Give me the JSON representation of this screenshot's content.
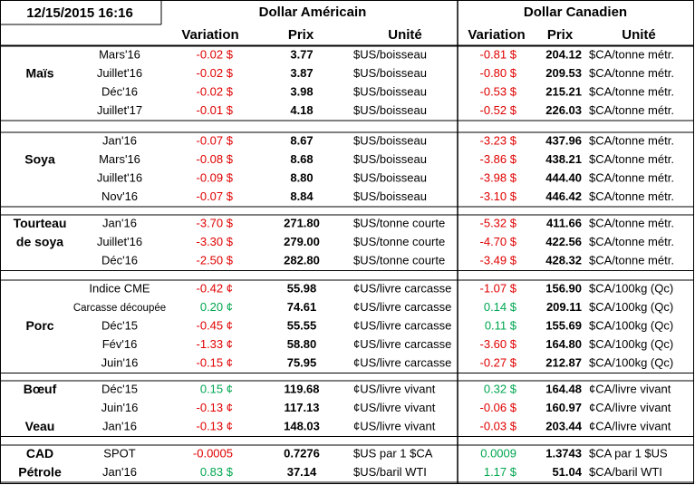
{
  "header": {
    "timestamp": "12/15/2015 16:16",
    "us_title": "Dollar Américain",
    "ca_title": "Dollar Canadien",
    "columns": {
      "us_variation": "Variation",
      "us_price": "Prix",
      "us_unit": "Unité",
      "ca_variation": "Variation",
      "ca_price": "Prix",
      "ca_unit": "Unité"
    }
  },
  "sections": [
    {
      "labels": [
        {
          "text": "Maïs",
          "row": 1
        }
      ],
      "rows": [
        {
          "contract": "Mars'16",
          "us_variation": "-0.02 $",
          "us_price": "3.77",
          "us_unit": "$US/boisseau",
          "ca_variation": "-0.81 $",
          "ca_price": "204.12",
          "ca_unit": "$CA/tonne métr."
        },
        {
          "contract": "Juillet'16",
          "us_variation": "-0.02 $",
          "us_price": "3.87",
          "us_unit": "$US/boisseau",
          "ca_variation": "-0.80 $",
          "ca_price": "209.53",
          "ca_unit": "$CA/tonne métr."
        },
        {
          "contract": "Déc'16",
          "us_variation": "-0.02 $",
          "us_price": "3.98",
          "us_unit": "$US/boisseau",
          "ca_variation": "-0.53 $",
          "ca_price": "215.21",
          "ca_unit": "$CA/tonne métr."
        },
        {
          "contract": "Juillet'17",
          "us_variation": "-0.01 $",
          "us_price": "4.18",
          "us_unit": "$US/boisseau",
          "ca_variation": "-0.52 $",
          "ca_price": "226.03",
          "ca_unit": "$CA/tonne métr."
        }
      ]
    },
    {
      "labels": [
        {
          "text": "Soya",
          "row": 1
        }
      ],
      "rows": [
        {
          "contract": "Jan'16",
          "us_variation": "-0.07 $",
          "us_price": "8.67",
          "us_unit": "$US/boisseau",
          "ca_variation": "-3.23 $",
          "ca_price": "437.96",
          "ca_unit": "$CA/tonne métr."
        },
        {
          "contract": "Mars'16",
          "us_variation": "-0.08 $",
          "us_price": "8.68",
          "us_unit": "$US/boisseau",
          "ca_variation": "-3.86 $",
          "ca_price": "438.21",
          "ca_unit": "$CA/tonne métr."
        },
        {
          "contract": "Juillet'16",
          "us_variation": "-0.09 $",
          "us_price": "8.80",
          "us_unit": "$US/boisseau",
          "ca_variation": "-3.98 $",
          "ca_price": "444.40",
          "ca_unit": "$CA/tonne métr."
        },
        {
          "contract": "Nov'16",
          "us_variation": "-0.07 $",
          "us_price": "8.84",
          "us_unit": "$US/boisseau",
          "ca_variation": "-3.10 $",
          "ca_price": "446.42",
          "ca_unit": "$CA/tonne métr."
        }
      ]
    },
    {
      "labels": [
        {
          "text": "Tourteau",
          "row": 0
        },
        {
          "text": "de soya",
          "row": 1
        }
      ],
      "rows": [
        {
          "contract": "Jan'16",
          "us_variation": "-3.70 $",
          "us_price": "271.80",
          "us_unit": "$US/tonne courte",
          "ca_variation": "-5.32 $",
          "ca_price": "411.66",
          "ca_unit": "$CA/tonne métr."
        },
        {
          "contract": "Juillet'16",
          "us_variation": "-3.30 $",
          "us_price": "279.00",
          "us_unit": "$US/tonne courte",
          "ca_variation": "-4.70 $",
          "ca_price": "422.56",
          "ca_unit": "$CA/tonne métr."
        },
        {
          "contract": "Déc'16",
          "us_variation": "-2.50 $",
          "us_price": "282.80",
          "us_unit": "$US/tonne courte",
          "ca_variation": "-3.49 $",
          "ca_price": "428.32",
          "ca_unit": "$CA/tonne métr."
        }
      ]
    },
    {
      "labels": [
        {
          "text": "Porc",
          "row": 2
        }
      ],
      "rows": [
        {
          "contract": "Indice CME",
          "us_variation": "-0.42 ¢",
          "us_price": "55.98",
          "us_unit": "¢US/livre carcasse",
          "ca_variation": "-1.07 $",
          "ca_price": "156.90",
          "ca_unit": "$CA/100kg (Qc)"
        },
        {
          "contract": "Carcasse découpée",
          "us_variation": "0.20 ¢",
          "us_price": "74.61",
          "us_unit": "¢US/livre carcasse",
          "ca_variation": "0.14 $",
          "ca_price": "209.11",
          "ca_unit": "$CA/100kg (Qc)"
        },
        {
          "contract": "Déc'15",
          "us_variation": "-0.45 ¢",
          "us_price": "55.55",
          "us_unit": "¢US/livre carcasse",
          "ca_variation": "0.11 $",
          "ca_price": "155.69",
          "ca_unit": "$CA/100kg (Qc)"
        },
        {
          "contract": "Fév'16",
          "us_variation": "-1.33 ¢",
          "us_price": "58.80",
          "us_unit": "¢US/livre carcasse",
          "ca_variation": "-3.60 $",
          "ca_price": "164.80",
          "ca_unit": "$CA/100kg (Qc)"
        },
        {
          "contract": "Juin'16",
          "us_variation": "-0.15 ¢",
          "us_price": "75.95",
          "us_unit": "¢US/livre carcasse",
          "ca_variation": "-0.27 $",
          "ca_price": "212.87",
          "ca_unit": "$CA/100kg (Qc)"
        }
      ]
    },
    {
      "labels": [
        {
          "text": "Bœuf",
          "row": 0
        },
        {
          "text": "Veau",
          "row": 2
        }
      ],
      "rows": [
        {
          "contract": "Déc'15",
          "us_variation": "0.15 ¢",
          "us_price": "119.68",
          "us_unit": "¢US/livre vivant",
          "ca_variation": "0.32 $",
          "ca_price": "164.48",
          "ca_unit": "¢CA/livre vivant"
        },
        {
          "contract": "Juin'16",
          "us_variation": "-0.13 ¢",
          "us_price": "117.13",
          "us_unit": "¢US/livre vivant",
          "ca_variation": "-0.06 $",
          "ca_price": "160.97",
          "ca_unit": "¢CA/livre vivant"
        },
        {
          "contract": "Jan'16",
          "us_variation": "-0.13 ¢",
          "us_price": "148.03",
          "us_unit": "¢US/livre vivant",
          "ca_variation": "-0.03 $",
          "ca_price": "203.44",
          "ca_unit": "¢CA/livre vivant"
        }
      ]
    },
    {
      "labels": [
        {
          "text": "CAD",
          "row": 0
        },
        {
          "text": "Pétrole",
          "row": 1
        }
      ],
      "rows": [
        {
          "contract": "SPOT",
          "us_variation": "-0.0005",
          "us_price": "0.7276",
          "us_unit": "$US par 1 $CA",
          "ca_variation": "0.0009",
          "ca_price": "1.3743",
          "ca_unit": "$CA par 1 $US"
        },
        {
          "contract": "Jan'16",
          "us_variation": "0.83 $",
          "us_price": "37.14",
          "us_unit": "$US/baril WTI",
          "ca_variation": "1.17 $",
          "ca_price": "51.04",
          "ca_unit": "$CA/baril WTI"
        }
      ]
    }
  ]
}
